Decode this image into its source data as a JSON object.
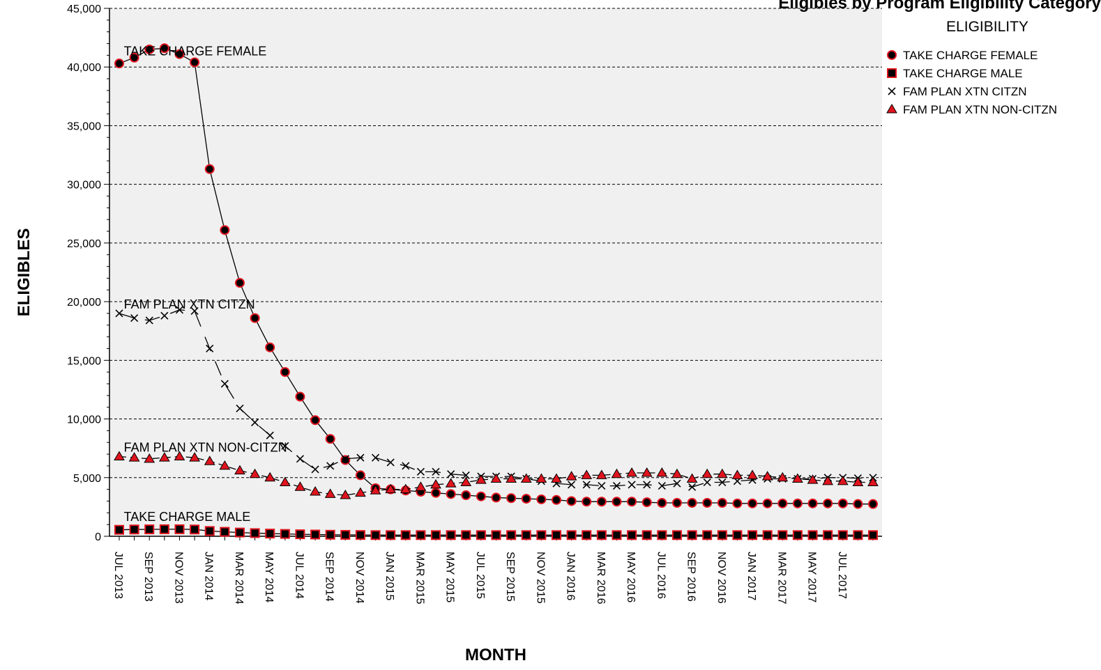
{
  "chart_data": {
    "type": "line",
    "title": "Eligibles by Program Eligibility Category",
    "xlabel": "MONTH",
    "ylabel": "ELIGIBLES",
    "ylim": [
      0,
      45000
    ],
    "yticks": [
      0,
      5000,
      10000,
      15000,
      20000,
      25000,
      30000,
      35000,
      40000,
      45000
    ],
    "ytick_labels": [
      "0",
      "5,000",
      "10,000",
      "15,000",
      "20,000",
      "25,000",
      "30,000",
      "35,000",
      "40,000",
      "45,000"
    ],
    "grid": "horizontal dashed",
    "legend_position": "right",
    "legend_title": "ELIGIBILITY",
    "x": [
      "JUL 2013",
      "AUG 2013",
      "SEP 2013",
      "OCT 2013",
      "NOV 2013",
      "DEC 2013",
      "JAN 2014",
      "FEB 2014",
      "MAR 2014",
      "APR 2014",
      "MAY 2014",
      "JUN 2014",
      "JUL 2014",
      "AUG 2014",
      "SEP 2014",
      "OCT 2014",
      "NOV 2014",
      "DEC 2014",
      "JAN 2015",
      "FEB 2015",
      "MAR 2015",
      "APR 2015",
      "MAY 2015",
      "JUN 2015",
      "JUL 2015",
      "AUG 2015",
      "SEP 2015",
      "OCT 2015",
      "NOV 2015",
      "DEC 2015",
      "JAN 2016",
      "FEB 2016",
      "MAR 2016",
      "APR 2016",
      "MAY 2016",
      "JUN 2016",
      "JUL 2016",
      "AUG 2016",
      "SEP 2016",
      "OCT 2016",
      "NOV 2016",
      "DEC 2016",
      "JAN 2017",
      "FEB 2017",
      "MAR 2017",
      "APR 2017",
      "MAY 2017",
      "JUN 2017",
      "JUL 2017",
      "AUG 2017",
      "SEP 2017"
    ],
    "x_tick_labels": [
      "JUL 2013",
      "SEP 2013",
      "NOV 2013",
      "JAN 2014",
      "MAR 2014",
      "MAY 2014",
      "JUL 2014",
      "SEP 2014",
      "NOV 2014",
      "JAN 2015",
      "MAR 2015",
      "MAY 2015",
      "JUL 2015",
      "SEP 2015",
      "NOV 2015",
      "JAN 2016",
      "MAR 2016",
      "MAY 2016",
      "JUL 2016",
      "SEP 2016",
      "NOV 2016",
      "JAN 2017",
      "MAR 2017",
      "MAY 2017",
      "JUL 2017"
    ],
    "series": [
      {
        "name": "TAKE CHARGE FEMALE",
        "marker": "circle",
        "dash": "solid",
        "values": [
          40300,
          40800,
          41500,
          41600,
          41100,
          40400,
          31300,
          26100,
          21600,
          18600,
          16100,
          14000,
          11900,
          9900,
          8300,
          6500,
          5200,
          4100,
          4000,
          3900,
          3800,
          3700,
          3600,
          3500,
          3400,
          3300,
          3250,
          3200,
          3150,
          3100,
          3000,
          2950,
          2950,
          2950,
          2950,
          2900,
          2850,
          2850,
          2850,
          2850,
          2850,
          2800,
          2800,
          2800,
          2800,
          2800,
          2800,
          2800,
          2800,
          2750,
          2750
        ]
      },
      {
        "name": "TAKE CHARGE MALE",
        "marker": "square",
        "dash": "solid",
        "values": [
          550,
          580,
          590,
          600,
          600,
          580,
          450,
          380,
          320,
          270,
          230,
          200,
          170,
          150,
          130,
          120,
          110,
          100,
          100,
          100,
          100,
          100,
          100,
          100,
          100,
          100,
          100,
          100,
          100,
          100,
          100,
          100,
          100,
          100,
          100,
          100,
          100,
          100,
          100,
          100,
          100,
          100,
          100,
          100,
          100,
          100,
          100,
          100,
          100,
          100,
          100
        ]
      },
      {
        "name": "FAM PLAN XTN CITZN",
        "marker": "x",
        "dash": "long-dash",
        "values": [
          19000,
          18600,
          18400,
          18800,
          19300,
          19200,
          16000,
          13000,
          10900,
          9700,
          8600,
          7700,
          6600,
          5700,
          6000,
          6600,
          6700,
          6700,
          6300,
          6000,
          5500,
          5500,
          5300,
          5200,
          5100,
          5100,
          5100,
          4900,
          4700,
          4500,
          4400,
          4400,
          4300,
          4300,
          4400,
          4400,
          4300,
          4500,
          4200,
          4600,
          4600,
          4700,
          4800,
          4900,
          4900,
          4900,
          4900,
          5000,
          5000,
          4950,
          5000
        ]
      },
      {
        "name": "FAM PLAN XTN NON-CITZN",
        "marker": "triangle",
        "dash": "dash",
        "values": [
          6800,
          6700,
          6600,
          6700,
          6800,
          6700,
          6400,
          6000,
          5600,
          5300,
          5000,
          4600,
          4200,
          3800,
          3600,
          3500,
          3700,
          3900,
          4000,
          4000,
          4200,
          4400,
          4500,
          4600,
          4800,
          4900,
          4900,
          4900,
          4900,
          4900,
          5100,
          5200,
          5200,
          5300,
          5400,
          5400,
          5400,
          5300,
          4900,
          5300,
          5300,
          5200,
          5200,
          5100,
          5000,
          4900,
          4800,
          4700,
          4700,
          4600,
          4600
        ]
      }
    ],
    "series_labels": [
      {
        "series": "TAKE CHARGE FEMALE",
        "text": "TAKE CHARGE FEMALE",
        "x": "AUG 2013",
        "y": 41000
      },
      {
        "series": "FAM PLAN XTN CITZN",
        "text": "FAM PLAN XTN CITZN",
        "x": "AUG 2013",
        "y": 19400
      },
      {
        "series": "FAM PLAN XTN NON-CITZN",
        "text": "FAM PLAN XTN NON-CITZN",
        "x": "AUG 2013",
        "y": 7200
      },
      {
        "series": "TAKE CHARGE MALE",
        "text": "TAKE CHARGE MALE",
        "x": "AUG 2013",
        "y": 1300
      }
    ],
    "colors": {
      "plot_background": "#f0f0f0",
      "marker_fill": "#000000",
      "marker_edge": "#e0141e",
      "line": "#000000",
      "grid": "#000000"
    }
  }
}
